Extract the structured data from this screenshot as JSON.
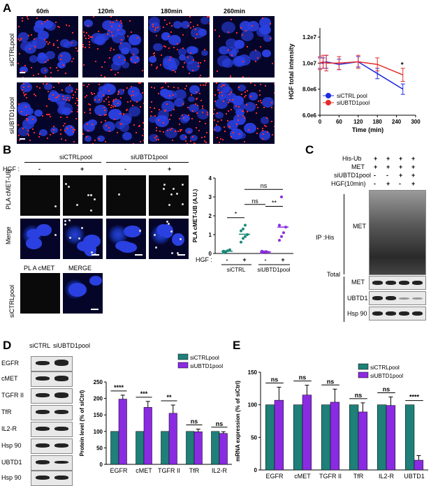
{
  "panels": {
    "a": "A",
    "b": "B",
    "c": "C",
    "d": "D",
    "e": "E"
  },
  "panel_a": {
    "time_labels": [
      "60ḿ",
      "120ḿ",
      "180min",
      "260min"
    ],
    "row_labels": [
      "siCTRLpool",
      "siUBTD1pool"
    ]
  },
  "panel_b": {
    "col_headers": [
      "siCTRLpool",
      "siUBTD1pool"
    ],
    "hgf_label": "HGF :",
    "hgf_signs": [
      "-",
      "+",
      "-",
      "+"
    ],
    "row_labels": [
      "PLA cMET-UB",
      "Merge"
    ],
    "lower_headers": [
      "PL A cMET",
      "MERGE"
    ],
    "lower_row_label": "siCTRLpool"
  },
  "panel_c": {
    "conditions": [
      {
        "label": "His-Ub",
        "values": [
          "+",
          "+",
          "+",
          "+"
        ]
      },
      {
        "label": "MET",
        "values": [
          "+",
          "+",
          "+",
          "+"
        ]
      },
      {
        "label": "siUBTD1pool",
        "values": [
          "-",
          "-",
          "+",
          "+"
        ]
      },
      {
        "label": "HGF(10min)",
        "values": [
          "-",
          "+",
          "-",
          "+"
        ]
      }
    ],
    "ip_label": "IP :His",
    "ip_blot": "MET",
    "total_label": "Total",
    "total_blots": [
      "MET",
      "UBTD1",
      "Hsp 90"
    ]
  },
  "panel_d_blots": {
    "lanes": [
      "siCTRL",
      "siUBTD1pool"
    ],
    "rows": [
      "EGFR",
      "cMET",
      "TGFR II",
      "TfR",
      "IL2-R",
      "Hsp 90",
      "UBTD1",
      "Hsp 90"
    ]
  },
  "chart_data": [
    {
      "type": "line",
      "panel": "A",
      "ylabel": "HGF total intensity",
      "xlabel": "Time (min)",
      "xlim": [
        0,
        300
      ],
      "ylim": [
        6000000.0,
        12700000.0
      ],
      "xticks": [
        0,
        60,
        120,
        180,
        240,
        300
      ],
      "yticks": [
        "1.2e7",
        "1.0e7",
        "8.0e6",
        "6.0e6"
      ],
      "series": [
        {
          "name": "siCTRL pool",
          "color": "#1f2be0",
          "x": [
            0,
            10,
            20,
            60,
            120,
            180,
            260
          ],
          "y": [
            10000000.0,
            10000000.0,
            10100000.0,
            9900000.0,
            10100000.0,
            9200000.0,
            8000000.0
          ],
          "err": [
            400000.0,
            400000.0,
            500000.0,
            400000.0,
            400000.0,
            400000.0,
            400000.0
          ]
        },
        {
          "name": "siUBTD1pool",
          "color": "#e52b2b",
          "x": [
            0,
            10,
            20,
            60,
            120,
            180,
            260
          ],
          "y": [
            10000000.0,
            10100000.0,
            10000000.0,
            10000000.0,
            10100000.0,
            9900000.0,
            9100000.0
          ],
          "err": [
            500000.0,
            500000.0,
            600000.0,
            500000.0,
            500000.0,
            500000.0,
            500000.0
          ]
        }
      ],
      "annotations": [
        "*"
      ]
    },
    {
      "type": "scatter",
      "panel": "B",
      "ylabel": "PLA cMET-UB (A.U.)",
      "ylim": [
        0,
        4
      ],
      "yticks": [
        0,
        1,
        2,
        3,
        4
      ],
      "hgf_label": "HGF :",
      "hgf_signs": [
        "-",
        "+",
        "-",
        "+"
      ],
      "groups": [
        "siCTRL",
        "siUBTD1pool"
      ],
      "series": [
        {
          "name": "siCTRL HGF-",
          "color": "#1a8a7a",
          "values": [
            0.05,
            0.1,
            0.15,
            0.2,
            0.12,
            0.08
          ],
          "mean": 0.12
        },
        {
          "name": "siCTRL HGF+",
          "color": "#1a8a7a",
          "values": [
            0.6,
            0.8,
            0.9,
            1.0,
            1.2,
            1.3,
            1.5
          ],
          "mean": 1.02
        },
        {
          "name": "siUBTD1 HGF-",
          "color": "#8a2be2",
          "values": [
            0.05,
            0.08,
            0.1,
            0.06,
            0.12
          ],
          "mean": 0.08
        },
        {
          "name": "siUBTD1 HGF+",
          "color": "#8a2be2",
          "values": [
            0.7,
            0.9,
            1.1,
            1.4,
            1.5,
            3.0
          ],
          "mean": 1.4
        }
      ],
      "significance": [
        "*",
        "ns",
        "**",
        "ns"
      ]
    },
    {
      "type": "bar",
      "panel": "D",
      "ylabel": "Protein level (% of siCtrl)",
      "ylim": [
        0,
        250
      ],
      "yticks": [
        0,
        50,
        100,
        150,
        200,
        250
      ],
      "categories": [
        "EGFR",
        "cMET",
        "TGFR II",
        "TfR",
        "IL2-R"
      ],
      "series": [
        {
          "name": "siCTRLpool",
          "color": "#1e8078",
          "values": [
            100,
            100,
            100,
            100,
            100
          ],
          "err": [
            0,
            0,
            0,
            0,
            0
          ]
        },
        {
          "name": "siUBTD1pool",
          "color": "#8a2be2",
          "values": [
            198,
            173,
            155,
            99,
            94
          ],
          "err": [
            12,
            18,
            25,
            8,
            5
          ]
        }
      ],
      "significance": [
        "****",
        "***",
        "**",
        "ns",
        "ns"
      ]
    },
    {
      "type": "bar",
      "panel": "E",
      "ylabel": "mRNA expression (% of siCtrl)",
      "ylim": [
        0,
        150
      ],
      "yticks": [
        0,
        50,
        100,
        150
      ],
      "categories": [
        "EGFR",
        "cMET",
        "TGFR II",
        "TfR",
        "IL2-R",
        "UBTD1"
      ],
      "series": [
        {
          "name": "siCTRLpool",
          "color": "#1e8078",
          "values": [
            100,
            100,
            100,
            100,
            100,
            100
          ],
          "err": [
            0,
            0,
            0,
            0,
            0,
            0
          ]
        },
        {
          "name": "siUBTD1pool",
          "color": "#8a2be2",
          "values": [
            107,
            115,
            104,
            89,
            99,
            15
          ],
          "err": [
            20,
            15,
            20,
            14,
            13,
            7
          ]
        }
      ],
      "significance": [
        "ns",
        "ns",
        "ns",
        "ns",
        "ns",
        "****"
      ]
    }
  ]
}
